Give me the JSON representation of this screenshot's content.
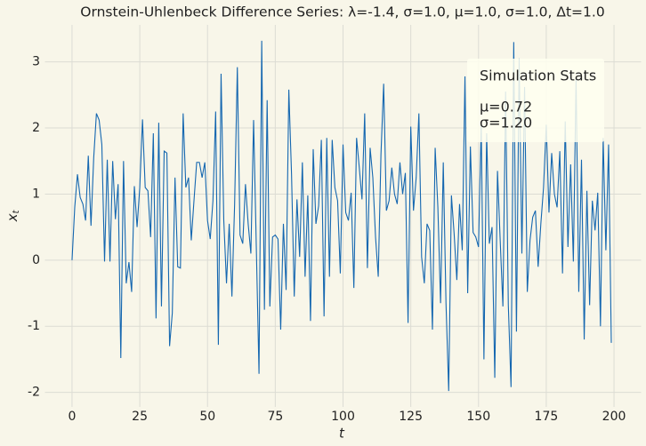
{
  "chart_data": {
    "type": "line",
    "title": "Ornstein-Uhlenbeck Difference Series: λ=-1.4, σ=1.0, μ=1.0, σ=1.0, Δt=1.0",
    "x_label": "t",
    "y_label": "x",
    "y_label_sub": "t",
    "x": [
      0,
      1,
      2,
      3,
      4,
      5,
      6,
      7,
      8,
      9,
      10,
      11,
      12,
      13,
      14,
      15,
      16,
      17,
      18,
      19,
      20,
      21,
      22,
      23,
      24,
      25,
      26,
      27,
      28,
      29,
      30,
      31,
      32,
      33,
      34,
      35,
      36,
      37,
      38,
      39,
      40,
      41,
      42,
      43,
      44,
      45,
      46,
      47,
      48,
      49,
      50,
      51,
      52,
      53,
      54,
      55,
      56,
      57,
      58,
      59,
      60,
      61,
      62,
      63,
      64,
      65,
      66,
      67,
      68,
      69,
      70,
      71,
      72,
      73,
      74,
      75,
      76,
      77,
      78,
      79,
      80,
      81,
      82,
      83,
      84,
      85,
      86,
      87,
      88,
      89,
      90,
      91,
      92,
      93,
      94,
      95,
      96,
      97,
      98,
      99,
      100,
      101,
      102,
      103,
      104,
      105,
      106,
      107,
      108,
      109,
      110,
      111,
      112,
      113,
      114,
      115,
      116,
      117,
      118,
      119,
      120,
      121,
      122,
      123,
      124,
      125,
      126,
      127,
      128,
      129,
      130,
      131,
      132,
      133,
      134,
      135,
      136,
      137,
      138,
      139,
      140,
      141,
      142,
      143,
      144,
      145,
      146,
      147,
      148,
      149,
      150,
      151,
      152,
      153,
      154,
      155,
      156,
      157,
      158,
      159,
      160,
      161,
      162,
      163,
      164,
      165,
      166,
      167,
      168,
      169,
      170,
      171,
      172,
      173,
      174,
      175,
      176,
      177,
      178,
      179,
      180,
      181,
      182,
      183,
      184,
      185,
      186,
      187,
      188,
      189,
      190,
      191,
      192,
      193,
      194,
      195,
      196,
      197,
      198,
      199
    ],
    "values": [
      0,
      0.8,
      1.3,
      0.95,
      0.85,
      0.6,
      1.58,
      0.52,
      1.55,
      2.22,
      2.12,
      1.75,
      -0.02,
      1.52,
      -0.02,
      1.5,
      0.62,
      1.15,
      -1.48,
      1.5,
      -0.35,
      -0.03,
      -0.48,
      1.12,
      0.5,
      1.1,
      2.13,
      1.1,
      1.05,
      0.35,
      1.92,
      -0.88,
      2.08,
      -0.7,
      1.65,
      1.62,
      -1.3,
      -0.8,
      1.25,
      -0.1,
      -0.12,
      2.22,
      1.1,
      1.25,
      0.3,
      0.9,
      1.48,
      1.48,
      1.25,
      1.48,
      0.6,
      0.32,
      0.9,
      2.25,
      -1.28,
      2.82,
      0.6,
      -0.35,
      0.55,
      -0.55,
      0.85,
      2.92,
      0.38,
      0.25,
      1.15,
      0.55,
      0.1,
      2.12,
      0.2,
      -1.72,
      3.32,
      -0.75,
      2.42,
      -0.7,
      0.35,
      0.38,
      0.32,
      -1.05,
      0.55,
      -0.45,
      2.58,
      1.3,
      -0.55,
      0.92,
      0.05,
      1.48,
      -0.25,
      0.98,
      -0.92,
      1.68,
      0.55,
      0.82,
      1.82,
      -0.85,
      1.85,
      -0.25,
      1.82,
      1.1,
      0.9,
      -0.2,
      1.75,
      0.72,
      0.6,
      1.02,
      -0.42,
      1.85,
      1.4,
      0.92,
      2.22,
      -0.12,
      1.7,
      1.25,
      0.35,
      -0.25,
      1.6,
      2.67,
      0.75,
      0.9,
      1.4,
      1.0,
      0.85,
      1.48,
      1.0,
      1.32,
      -0.95,
      2.02,
      0.75,
      1.25,
      2.22,
      0.05,
      -0.35,
      0.55,
      0.45,
      -1.05,
      1.7,
      0.8,
      -0.65,
      1.48,
      -0.65,
      -1.98,
      0.98,
      0.4,
      -0.3,
      0.85,
      0.15,
      2.78,
      -0.5,
      1.72,
      0.42,
      0.35,
      0.2,
      2.05,
      -1.5,
      1.92,
      0.25,
      0.5,
      -1.78,
      1.35,
      0.3,
      -0.7,
      2.55,
      -0.68,
      -1.92,
      3.3,
      -1.08,
      3.05,
      0.1,
      2.62,
      -0.48,
      0.3,
      0.65,
      0.75,
      -0.1,
      0.55,
      1.1,
      2.05,
      0.72,
      1.62,
      1.0,
      0.8,
      1.65,
      -0.2,
      2.1,
      0.2,
      1.45,
      -0.02,
      2.75,
      -0.48,
      1.52,
      -1.2,
      1.05,
      -0.68,
      0.9,
      0.45,
      1.02,
      -1.0,
      1.85,
      0.15,
      1.75,
      -1.25
    ],
    "color": "#1567b0",
    "xlim": [
      -10,
      210
    ],
    "ylim": [
      -2.22,
      3.56
    ],
    "xticks": [
      0,
      25,
      50,
      75,
      100,
      125,
      150,
      175,
      200
    ],
    "yticks": [
      -2,
      -1,
      0,
      1,
      2,
      3
    ],
    "grid": true,
    "stats_box": {
      "title": "Simulation Stats",
      "lines": [
        "μ=0.72",
        "σ=1.20"
      ]
    }
  }
}
